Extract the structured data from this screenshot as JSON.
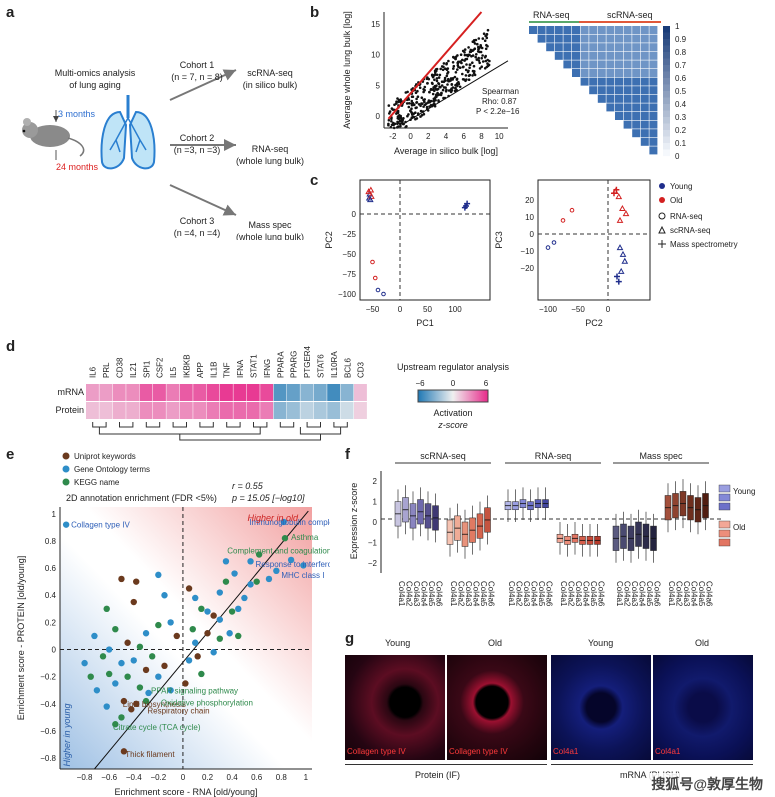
{
  "panel_labels": [
    "a",
    "b",
    "c",
    "d",
    "e",
    "f",
    "g"
  ],
  "panel_a": {
    "title_line1": "Multi-omics analysis",
    "title_line2": "of lung aging",
    "age_young": "3 months",
    "age_old": "24 months",
    "cohorts": [
      {
        "name": "Cohort 1",
        "n": "(n = 7, n = 8)",
        "assay": "scRNA-seq",
        "sub": "(in silico bulk)"
      },
      {
        "name": "Cohort 2",
        "n": "(n =3, n =3)",
        "assay": "RNA-seq",
        "sub": "(whole lung bulk)"
      },
      {
        "name": "Cohort 3",
        "n": "(n =4, n =4)",
        "assay": "Mass spec",
        "sub": "(whole lung bulk)"
      }
    ]
  },
  "panel_b": {
    "chart_data": {
      "type": "scatter",
      "xlabel": "Average in silico bulk [log]",
      "ylabel": "Average whole lung bulk [log]",
      "xticks": [
        "-2",
        "0",
        "2",
        "4",
        "6",
        "8",
        "10"
      ],
      "yticks": [
        "0",
        "5",
        "10",
        "15"
      ],
      "xlim": [
        -3,
        11
      ],
      "ylim": [
        -2,
        17
      ],
      "annotation": [
        "Spearman",
        "Rho: 0.87",
        "P < 2.2e−16"
      ]
    },
    "heatmap": {
      "left_label": "RNA-seq",
      "right_label": "scRNA-seq",
      "colorbar_ticks": [
        "0",
        "0.1",
        "0.2",
        "0.3",
        "0.4",
        "0.5",
        "0.6",
        "0.7",
        "0.8",
        "0.9",
        "1"
      ],
      "colors": {
        "low": "#e8eef6",
        "high": "#1f5aa6"
      }
    }
  },
  "panel_c": {
    "charts": [
      {
        "type": "scatter",
        "xlabel": "PC1",
        "ylabel": "PC2",
        "xticks": [
          "−50",
          "0",
          "50",
          "100"
        ],
        "yticks": [
          "0",
          "−25",
          "−50",
          "−75",
          "−100"
        ]
      },
      {
        "type": "scatter",
        "xlabel": "PC2",
        "ylabel": "PC3",
        "xticks": [
          "−100",
          "−50",
          "0"
        ],
        "yticks": [
          "20",
          "10",
          "0",
          "−10",
          "−20"
        ]
      }
    ],
    "legend": [
      {
        "label": "Young",
        "marker": "dot",
        "color": "#1f2d8c"
      },
      {
        "label": "Old",
        "marker": "dot",
        "color": "#d32020"
      },
      {
        "label": "RNA-seq",
        "marker": "circle-open",
        "color": "#222"
      },
      {
        "label": "scRNA-seq",
        "marker": "triangle-open",
        "color": "#222"
      },
      {
        "label": "Mass spectrometry",
        "marker": "plus",
        "color": "#222"
      }
    ]
  },
  "panel_d": {
    "genes": [
      "IL6",
      "PRL",
      "CD38",
      "IL21",
      "SPI1",
      "CSF2",
      "IL5",
      "IKBKB",
      "APP",
      "IL1B",
      "TNF",
      "IFNA",
      "STAT1",
      "IFNG",
      "PPARA",
      "PPARG",
      "PTGER4",
      "STAT6",
      "IL10RA",
      "BCL6",
      "CD3"
    ],
    "rows": [
      "mRNA",
      "Protein"
    ],
    "mrna": [
      2.5,
      2.5,
      3,
      3,
      4.5,
      4.5,
      3.5,
      4.5,
      4.5,
      5,
      5.5,
      5.5,
      5.5,
      5,
      -4.5,
      -4,
      -3,
      -3.5,
      -5,
      -3,
      1.5
    ],
    "protein": [
      1.5,
      1.5,
      2,
      2,
      3,
      3,
      2.5,
      3,
      3,
      3.5,
      4,
      4,
      4,
      3.5,
      -3,
      -2.5,
      -1.5,
      -2,
      -2.5,
      -1,
      1
    ],
    "legend_title": "Upstream regulator analysis",
    "legend_ticks": [
      "−6",
      "0",
      "6"
    ],
    "legend_caption1": "Activation",
    "legend_caption2": "z-score"
  },
  "panel_e": {
    "legend": [
      {
        "label": "Uniprot keywords",
        "color": "#6b3a1e"
      },
      {
        "label": "Gene Ontology terms",
        "color": "#2e8ec8"
      },
      {
        "label": "KEGG name",
        "color": "#2f8a4c"
      }
    ],
    "title": "2D annotation enrichment (FDR <5%)",
    "stat_r": "r = 0.55",
    "stat_p": "p = 15.05 [−log10]",
    "higher_old": "Higher in old",
    "higher_young": "Higher in young",
    "chart_data": {
      "type": "scatter",
      "xlabel": "Enrichment score - RNA [old/young]",
      "ylabel": "Enrichment score - PROTEIN [old/young]",
      "xticks": [
        "−0.8",
        "−0.6",
        "−0.4",
        "−0.2",
        "0",
        "0.2",
        "0.4",
        "0.6",
        "0.8",
        "1"
      ],
      "yticks": [
        "1",
        "0.8",
        "0.6",
        "0.4",
        "0.2",
        "0",
        "−0.2",
        "−0.4",
        "−0.6",
        "−0.8"
      ],
      "xlim": [
        -1.0,
        1.05
      ],
      "ylim": [
        -0.88,
        1.05
      ],
      "labels": [
        {
          "text": "Collagen type IV",
          "x": -0.95,
          "y": 0.92,
          "color": "#2e5fb8"
        },
        {
          "text": "Immunoglobulin complex",
          "x": 0.5,
          "y": 0.94,
          "color": "#2e5fb8"
        },
        {
          "text": "Asthma",
          "x": 0.84,
          "y": 0.83,
          "color": "#2f8a4c"
        },
        {
          "text": "Complement and coagulation cascades",
          "x": 0.32,
          "y": 0.73,
          "color": "#2f8a4c"
        },
        {
          "text": "Response to interferon-gamma",
          "x": 0.55,
          "y": 0.63,
          "color": "#2e5fb8"
        },
        {
          "text": "MHC class I",
          "x": 0.76,
          "y": 0.55,
          "color": "#2e5fb8"
        },
        {
          "text": "PPAR signaling pathway",
          "x": -0.3,
          "y": -0.3,
          "color": "#2f8a4c"
        },
        {
          "text": "Lipid biosynthesis",
          "x": -0.53,
          "y": -0.4,
          "color": "#6b3a1e"
        },
        {
          "text": "Oxidative phosphorylation",
          "x": -0.22,
          "y": -0.39,
          "color": "#2f8a4c"
        },
        {
          "text": "Respiratory chain",
          "x": -0.33,
          "y": -0.45,
          "color": "#6b3a1e"
        },
        {
          "text": "Citrate cycle (TCA cycle)",
          "x": -0.61,
          "y": -0.57,
          "color": "#2f8a4c"
        },
        {
          "text": "Thick filament",
          "x": -0.51,
          "y": -0.77,
          "color": "#6b3a1e"
        }
      ],
      "points": [
        {
          "x": -0.95,
          "y": 0.92,
          "c": "#2e8ec8"
        },
        {
          "x": 0.82,
          "y": 0.94,
          "c": "#2e8ec8"
        },
        {
          "x": 0.83,
          "y": 0.82,
          "c": "#2f8a4c"
        },
        {
          "x": 0.62,
          "y": 0.7,
          "c": "#2f8a4c"
        },
        {
          "x": 0.55,
          "y": 0.65,
          "c": "#2e8ec8"
        },
        {
          "x": 0.76,
          "y": 0.58,
          "c": "#2e8ec8"
        },
        {
          "x": 0.98,
          "y": 0.62,
          "c": "#2e8ec8"
        },
        {
          "x": 0.88,
          "y": 0.66,
          "c": "#2e8ec8"
        },
        {
          "x": -0.5,
          "y": 0.52,
          "c": "#6b3a1e"
        },
        {
          "x": -0.38,
          "y": 0.5,
          "c": "#6b3a1e"
        },
        {
          "x": -0.4,
          "y": 0.35,
          "c": "#6b3a1e"
        },
        {
          "x": -0.2,
          "y": 0.55,
          "c": "#2e8ec8"
        },
        {
          "x": 0.05,
          "y": 0.45,
          "c": "#6b3a1e"
        },
        {
          "x": 0.1,
          "y": 0.38,
          "c": "#2e8ec8"
        },
        {
          "x": 0.3,
          "y": 0.42,
          "c": "#2e8ec8"
        },
        {
          "x": 0.35,
          "y": 0.5,
          "c": "#2f8a4c"
        },
        {
          "x": 0.42,
          "y": 0.56,
          "c": "#2e8ec8"
        },
        {
          "x": 0.2,
          "y": 0.28,
          "c": "#2e8ec8"
        },
        {
          "x": 0.15,
          "y": 0.3,
          "c": "#2f8a4c"
        },
        {
          "x": 0.25,
          "y": 0.25,
          "c": "#6b3a1e"
        },
        {
          "x": 0.3,
          "y": 0.22,
          "c": "#2e8ec8"
        },
        {
          "x": 0.4,
          "y": 0.28,
          "c": "#2f8a4c"
        },
        {
          "x": 0.45,
          "y": 0.3,
          "c": "#2e8ec8"
        },
        {
          "x": 0.5,
          "y": 0.38,
          "c": "#2e8ec8"
        },
        {
          "x": 0.38,
          "y": 0.12,
          "c": "#2e8ec8"
        },
        {
          "x": 0.2,
          "y": 0.12,
          "c": "#6b3a1e"
        },
        {
          "x": 0.1,
          "y": 0.05,
          "c": "#2e8ec8"
        },
        {
          "x": 0.3,
          "y": 0.08,
          "c": "#2f8a4c"
        },
        {
          "x": 0.25,
          "y": -0.02,
          "c": "#2e8ec8"
        },
        {
          "x": 0.05,
          "y": -0.08,
          "c": "#2e8ec8"
        },
        {
          "x": 0.12,
          "y": -0.05,
          "c": "#6b3a1e"
        },
        {
          "x": 0.08,
          "y": 0.15,
          "c": "#2f8a4c"
        },
        {
          "x": -0.1,
          "y": 0.2,
          "c": "#2e8ec8"
        },
        {
          "x": -0.05,
          "y": 0.1,
          "c": "#6b3a1e"
        },
        {
          "x": -0.2,
          "y": 0.18,
          "c": "#2f8a4c"
        },
        {
          "x": -0.3,
          "y": 0.12,
          "c": "#2e8ec8"
        },
        {
          "x": -0.35,
          "y": 0.02,
          "c": "#2f8a4c"
        },
        {
          "x": -0.45,
          "y": 0.05,
          "c": "#6b3a1e"
        },
        {
          "x": -0.55,
          "y": 0.15,
          "c": "#2f8a4c"
        },
        {
          "x": -0.6,
          "y": 0.0,
          "c": "#2e8ec8"
        },
        {
          "x": -0.65,
          "y": -0.05,
          "c": "#2f8a4c"
        },
        {
          "x": -0.5,
          "y": -0.1,
          "c": "#2e8ec8"
        },
        {
          "x": -0.4,
          "y": -0.08,
          "c": "#2e8ec8"
        },
        {
          "x": -0.3,
          "y": -0.15,
          "c": "#6b3a1e"
        },
        {
          "x": -0.25,
          "y": -0.05,
          "c": "#2f8a4c"
        },
        {
          "x": -0.2,
          "y": -0.2,
          "c": "#2e8ec8"
        },
        {
          "x": -0.15,
          "y": -0.12,
          "c": "#6b3a1e"
        },
        {
          "x": -0.45,
          "y": -0.2,
          "c": "#2f8a4c"
        },
        {
          "x": -0.55,
          "y": -0.25,
          "c": "#2e8ec8"
        },
        {
          "x": -0.6,
          "y": -0.18,
          "c": "#2f8a4c"
        },
        {
          "x": -0.35,
          "y": -0.28,
          "c": "#2f8a4c"
        },
        {
          "x": -0.28,
          "y": -0.32,
          "c": "#2e8ec8"
        },
        {
          "x": -0.3,
          "y": -0.38,
          "c": "#2f8a4c"
        },
        {
          "x": -0.38,
          "y": -0.4,
          "c": "#6b3a1e"
        },
        {
          "x": -0.42,
          "y": -0.44,
          "c": "#6b3a1e"
        },
        {
          "x": -0.48,
          "y": -0.38,
          "c": "#6b3a1e"
        },
        {
          "x": -0.5,
          "y": -0.5,
          "c": "#2f8a4c"
        },
        {
          "x": -0.55,
          "y": -0.55,
          "c": "#2f8a4c"
        },
        {
          "x": -0.62,
          "y": -0.42,
          "c": "#2e8ec8"
        },
        {
          "x": -0.7,
          "y": -0.3,
          "c": "#2e8ec8"
        },
        {
          "x": -0.75,
          "y": -0.2,
          "c": "#2f8a4c"
        },
        {
          "x": -0.8,
          "y": -0.1,
          "c": "#2e8ec8"
        },
        {
          "x": -0.48,
          "y": -0.75,
          "c": "#6b3a1e"
        },
        {
          "x": -0.1,
          "y": -0.3,
          "c": "#2e8ec8"
        },
        {
          "x": 0.02,
          "y": -0.25,
          "c": "#6b3a1e"
        },
        {
          "x": 0.15,
          "y": -0.18,
          "c": "#2f8a4c"
        },
        {
          "x": 0.55,
          "y": 0.48,
          "c": "#2e8ec8"
        },
        {
          "x": 0.6,
          "y": 0.5,
          "c": "#2f8a4c"
        },
        {
          "x": 0.7,
          "y": 0.52,
          "c": "#2e8ec8"
        },
        {
          "x": 0.35,
          "y": 0.65,
          "c": "#2e8ec8"
        },
        {
          "x": 0.45,
          "y": 0.1,
          "c": "#2f8a4c"
        },
        {
          "x": -0.15,
          "y": 0.4,
          "c": "#2e8ec8"
        },
        {
          "x": -0.62,
          "y": 0.3,
          "c": "#2f8a4c"
        },
        {
          "x": -0.72,
          "y": 0.1,
          "c": "#2e8ec8"
        }
      ]
    }
  },
  "panel_f": {
    "ylabel": "Expression z-score",
    "yticks": [
      "2",
      "1",
      "0",
      "−1",
      "−2"
    ],
    "groups": [
      "scRNA-seq",
      "RNA-seq",
      "Mass spec"
    ],
    "genes": [
      "Col4a1",
      "Col4a2",
      "Col4a3",
      "Col4a4",
      "Col4a5",
      "Col4a6"
    ],
    "legend_young": "Young",
    "legend_old": "Old",
    "chart_data": {
      "type": "box",
      "ylim": [
        -2.5,
        2.5
      ],
      "series": [
        {
          "group": "scRNA-seq",
          "age": "young",
          "medians": [
            0.4,
            0.6,
            0.3,
            0.5,
            0.3,
            0.2
          ]
        },
        {
          "group": "scRNA-seq",
          "age": "old",
          "medians": [
            -0.5,
            -0.3,
            -0.6,
            -0.4,
            -0.2,
            0.1
          ]
        },
        {
          "group": "RNA-seq",
          "age": "young",
          "medians": [
            0.8,
            0.8,
            0.9,
            0.8,
            0.9,
            0.9
          ]
        },
        {
          "group": "RNA-seq",
          "age": "old",
          "medians": [
            -0.8,
            -0.9,
            -0.8,
            -0.9,
            -0.9,
            -0.9
          ]
        },
        {
          "group": "Mass spec",
          "age": "young",
          "medians": [
            -0.8,
            -0.7,
            -0.8,
            -0.6,
            -0.7,
            -0.8
          ]
        },
        {
          "group": "Mass spec",
          "age": "old",
          "medians": [
            0.7,
            0.8,
            0.9,
            0.7,
            0.6,
            0.8
          ]
        }
      ]
    },
    "colors": {
      "scRNA_young": [
        "#c8c5e0",
        "#a8a4d0",
        "#8a85c0",
        "#6e68ad",
        "#56508f",
        "#3e3873"
      ],
      "RNA_young": [
        "#b3b6e8",
        "#9a9ee0",
        "#8388d7",
        "#6c70c9",
        "#585cb8",
        "#4347a0"
      ],
      "mass_young": [
        "#5a5a80",
        "#4a4a70",
        "#3e3d63",
        "#353456",
        "#2c2b4a",
        "#24233f"
      ],
      "scRNA_old": [
        "#f5c3b2",
        "#efab96",
        "#e8927b",
        "#e07a62",
        "#d5654e",
        "#c55440"
      ],
      "RNA_old": [
        "#f3a796",
        "#ec8e7b",
        "#e27562",
        "#d65f4c",
        "#c94b3a",
        "#b53a2b"
      ],
      "mass_old": [
        "#a3503c",
        "#8f4330",
        "#7e3826",
        "#6e2e1d",
        "#5f2516",
        "#501d10"
      ]
    }
  },
  "panel_g": {
    "titles": [
      "Young",
      "Old",
      "Young",
      "Old"
    ],
    "stains": [
      "Collagen type IV",
      "Collagen type IV",
      "Col4a1",
      "Col4a1"
    ],
    "bottom_left": "Protein (IF)",
    "bottom_right": "mRNA (PLISH)",
    "watermark": "搜狐号@敦厚生物"
  }
}
